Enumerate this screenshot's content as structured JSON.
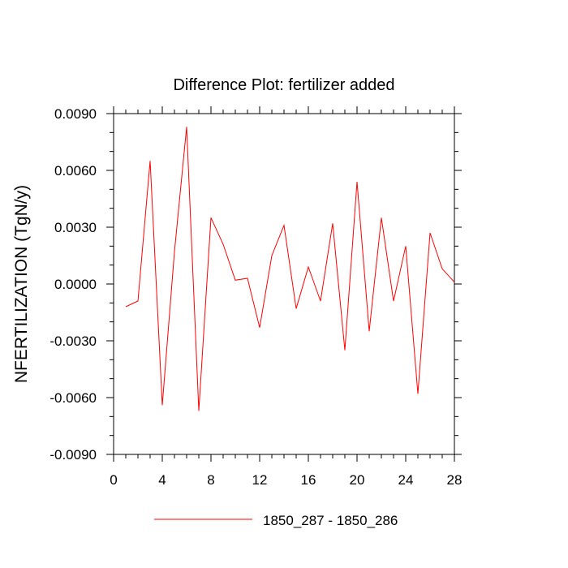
{
  "chart_data": {
    "type": "line",
    "title": "Difference Plot: fertilizer added",
    "xlabel": "",
    "ylabel": "NFERTILIZATION  (TgN/y)",
    "xlim": [
      0,
      28
    ],
    "ylim": [
      -0.009,
      0.009
    ],
    "x_ticks": [
      0,
      4,
      8,
      12,
      16,
      20,
      24,
      28
    ],
    "x_tick_labels": [
      "0",
      "4",
      "8",
      "12",
      "16",
      "20",
      "24",
      "28"
    ],
    "y_ticks": [
      -0.009,
      -0.006,
      -0.003,
      0,
      0.003,
      0.006,
      0.009
    ],
    "y_tick_labels": [
      "-0.0090",
      "-0.0060",
      "-0.0030",
      "0.0000",
      "0.0030",
      "0.0060",
      "0.0090"
    ],
    "grid": false,
    "legend_position": "bottom",
    "series": [
      {
        "name": "1850_287 - 1850_286",
        "color": "#ff0000",
        "x": [
          1,
          2,
          3,
          4,
          5,
          6,
          7,
          8,
          9,
          10,
          11,
          12,
          13,
          14,
          15,
          16,
          17,
          18,
          19,
          20,
          21,
          22,
          23,
          24,
          25,
          26,
          27,
          28
        ],
        "values": [
          -0.0012,
          -0.0009,
          0.0065,
          -0.0064,
          0.0017,
          0.0083,
          -0.0067,
          0.0035,
          0.0021,
          0.0002,
          0.0003,
          -0.0023,
          0.0015,
          0.0031,
          -0.0013,
          0.0009,
          -0.0009,
          0.0032,
          -0.0035,
          0.0054,
          -0.0025,
          0.0035,
          -0.0009,
          0.002,
          -0.0058,
          0.0027,
          0.0008,
          0.0001
        ]
      }
    ]
  }
}
